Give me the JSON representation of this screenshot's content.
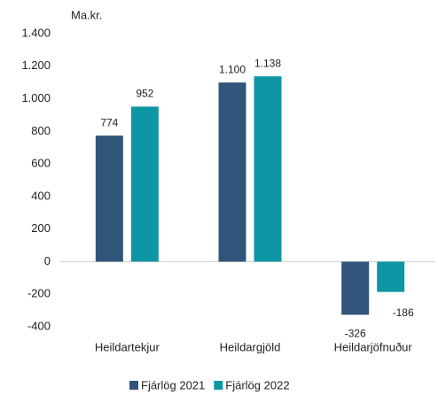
{
  "chart_data": {
    "type": "bar",
    "y_label": "Ma.kr.",
    "categories": [
      "Heildartekjur",
      "Heildargjöld",
      "Heildarjöfnuður"
    ],
    "series": [
      {
        "name": "Fjárlög 2021",
        "color": "#31557a",
        "values": [
          774,
          1100,
          -326
        ],
        "value_labels": [
          "774",
          "1.100",
          "-326"
        ]
      },
      {
        "name": "Fjárlög 2022",
        "color": "#0f96a5",
        "values": [
          952,
          1138,
          -186
        ],
        "value_labels": [
          "952",
          "1.138",
          "-186"
        ]
      }
    ],
    "ylim": [
      -400,
      1400
    ],
    "yticks": [
      {
        "value": -400,
        "label": "-400"
      },
      {
        "value": -200,
        "label": "-200"
      },
      {
        "value": 0,
        "label": "0"
      },
      {
        "value": 200,
        "label": "200"
      },
      {
        "value": 400,
        "label": "400"
      },
      {
        "value": 600,
        "label": "600"
      },
      {
        "value": 800,
        "label": "800"
      },
      {
        "value": 1000,
        "label": "1.000"
      },
      {
        "value": 1200,
        "label": "1.200"
      },
      {
        "value": 1400,
        "label": "1.400"
      }
    ],
    "legend": "bottom"
  }
}
